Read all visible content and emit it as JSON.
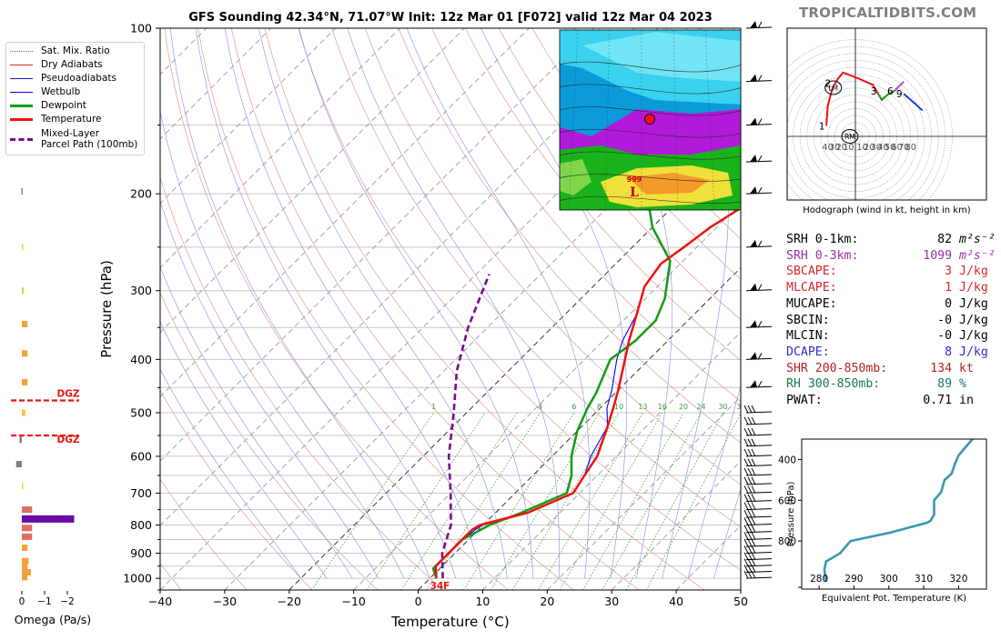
{
  "title": "GFS Sounding 42.34°N, 71.07°W Init: 12z Mar 01 [F072] valid 12z Mar 04 2023",
  "brand": "TROPICALTIDBITS.COM",
  "legend": {
    "items": [
      {
        "label": "Sat. Mix. Ratio",
        "color": "#2ca02c",
        "style": "dotted"
      },
      {
        "label": "Dry Adiabats",
        "color": "#d62728",
        "style": "thin"
      },
      {
        "label": "Pseudoadiabats",
        "color": "#1f1fd6",
        "style": "thin"
      },
      {
        "label": "Wetbulb",
        "color": "#0000ff",
        "style": "solid"
      },
      {
        "label": "Dewpoint",
        "color": "#129c12",
        "style": "thick"
      },
      {
        "label": "Temperature",
        "color": "#ee1111",
        "style": "thick"
      },
      {
        "label": "Mixed-Layer",
        "label2": "Parcel Path (100mb)",
        "color": "#7a0c8c",
        "style": "dashed"
      }
    ]
  },
  "surface_temp_label": "34F",
  "dgz_label": "DGZ",
  "inset_map": {
    "low_label": "L",
    "low_pressure": "999"
  },
  "stats": [
    {
      "label": "SRH 0-1km:",
      "value": "82",
      "unit": "m²s⁻²",
      "color": "#000000"
    },
    {
      "label": "SRH 0-3km:",
      "value": "1099",
      "unit": "m²s⁻²",
      "color": "#9b2fae"
    },
    {
      "label": "SBCAPE:",
      "value": "3",
      "unit": "J/kg",
      "color": "#d62728"
    },
    {
      "label": "MLCAPE:",
      "value": "1",
      "unit": "J/kg",
      "color": "#d62728"
    },
    {
      "label": "MUCAPE:",
      "value": "0",
      "unit": "J/kg",
      "color": "#000000"
    },
    {
      "label": "SBCIN:",
      "value": "-0",
      "unit": "J/kg",
      "color": "#000000"
    },
    {
      "label": "MLCIN:",
      "value": "-0",
      "unit": "J/kg",
      "color": "#000000"
    },
    {
      "label": "DCAPE:",
      "value": "8",
      "unit": "J/kg",
      "color": "#2b2bd6"
    },
    {
      "label": "SHR 200-850mb:",
      "value": "134",
      "unit": "kt",
      "color": "#b22222"
    },
    {
      "label": "RH 300-850mb:",
      "value": "89",
      "unit": "%",
      "color": "#1a7a4a"
    },
    {
      "label": "PWAT:",
      "value": "0.71",
      "unit": "in",
      "color": "#000000"
    }
  ],
  "chart_data": [
    {
      "type": "line",
      "name": "skew-t",
      "xlabel": "Temperature (°C)",
      "ylabel": "Pressure (hPa)",
      "xlim": [
        -40,
        50
      ],
      "ylim": [
        1000,
        100
      ],
      "yscale": "log",
      "x_ticks": [
        -40,
        -30,
        -20,
        -10,
        0,
        10,
        20,
        30,
        40,
        50
      ],
      "y_ticks": [
        100,
        200,
        300,
        400,
        500,
        600,
        700,
        800,
        900,
        1000
      ],
      "mixing_ratio_labels": [
        "1",
        "4",
        "6",
        "8",
        "10",
        "13",
        "16",
        "20",
        "24",
        "30",
        "36"
      ],
      "series": [
        {
          "name": "Temperature",
          "color": "#ee1111",
          "points": [
            [
              1,
              1000
            ],
            [
              -1,
              950
            ],
            [
              -1,
              900
            ],
            [
              -1,
              860
            ],
            [
              -1,
              815
            ],
            [
              -0.5,
              800
            ],
            [
              5,
              760
            ],
            [
              9,
              700
            ],
            [
              8,
              650
            ],
            [
              7,
              600
            ],
            [
              4,
              530
            ],
            [
              2,
              490
            ],
            [
              0,
              455
            ],
            [
              -3,
              410
            ],
            [
              -6,
              370
            ],
            [
              -9,
              330
            ],
            [
              -12,
              295
            ],
            [
              -13,
              268
            ],
            [
              -12,
              250
            ],
            [
              -11,
              230
            ],
            [
              -8,
              200
            ],
            [
              -7,
              175
            ],
            [
              -5,
              150
            ],
            [
              -4,
              130
            ],
            [
              -1,
              110
            ],
            [
              0,
              100
            ]
          ]
        },
        {
          "name": "Dewpoint",
          "color": "#129c12",
          "points": [
            [
              1,
              1000
            ],
            [
              -1,
              960
            ],
            [
              -1,
              900
            ],
            [
              -1,
              850
            ],
            [
              1,
              800
            ],
            [
              4,
              760
            ],
            [
              8,
              700
            ],
            [
              6,
              650
            ],
            [
              3,
              600
            ],
            [
              0,
              540
            ],
            [
              -2,
              490
            ],
            [
              -3,
              460
            ],
            [
              -6,
              400
            ],
            [
              -5,
              370
            ],
            [
              -5,
              340
            ],
            [
              -7,
              310
            ],
            [
              -12,
              265
            ],
            [
              -20,
              230
            ],
            [
              -26,
              200
            ],
            [
              -28,
              180
            ],
            [
              -28,
              160
            ],
            [
              -24,
              130
            ],
            [
              -20,
              100
            ]
          ]
        },
        {
          "name": "Wetbulb",
          "color": "#0000ff",
          "points": [
            [
              1,
              1000
            ],
            [
              -1,
              955
            ],
            [
              -1,
              900
            ],
            [
              -1,
              860
            ],
            [
              -0.5,
              815
            ],
            [
              0,
              800
            ],
            [
              5,
              760
            ],
            [
              9,
              700
            ],
            [
              8,
              650
            ],
            [
              6,
              600
            ],
            [
              4,
              530
            ],
            [
              1,
              490
            ],
            [
              -1,
              455
            ],
            [
              -5,
              400
            ],
            [
              -7,
              370
            ],
            [
              -9,
              330
            ],
            [
              -12,
              295
            ],
            [
              -13,
              268
            ],
            [
              -12,
              250
            ],
            [
              -11,
              230
            ],
            [
              -8,
              200
            ],
            [
              -7,
              175
            ],
            [
              -5,
              150
            ],
            [
              -3,
              130
            ],
            [
              -1,
              110
            ],
            [
              1,
              100
            ]
          ]
        },
        {
          "name": "Mixed-Layer Parcel Path (100mb)",
          "color": "#7a0c8c",
          "points": [
            [
              2,
              1000
            ],
            [
              -2,
              900
            ],
            [
              -5,
              800
            ],
            [
              -10,
              700
            ],
            [
              -16,
              600
            ],
            [
              -22,
              500
            ],
            [
              -28,
              420
            ],
            [
              -33,
              350
            ],
            [
              -38,
              280
            ]
          ]
        }
      ]
    },
    {
      "type": "bar",
      "name": "omega",
      "xlabel": "Omega (Pa/s)",
      "x_ticks": [
        "0",
        "−1",
        "−2"
      ],
      "xlim": [
        0.3,
        -2.8
      ],
      "bars": [
        {
          "p": 995,
          "value": -0.25,
          "color": "#f4a13c"
        },
        {
          "p": 975,
          "value": -0.4,
          "color": "#f4a13c"
        },
        {
          "p": 955,
          "value": -0.25,
          "color": "#f4a13c"
        },
        {
          "p": 930,
          "value": -0.3,
          "color": "#f4a13c"
        },
        {
          "p": 880,
          "value": -0.25,
          "color": "#f4a13c"
        },
        {
          "p": 840,
          "value": -0.45,
          "color": "#e06b5d"
        },
        {
          "p": 810,
          "value": -0.45,
          "color": "#e06b5d"
        },
        {
          "p": 780,
          "value": -2.3,
          "color": "#6a0aa8"
        },
        {
          "p": 750,
          "value": -0.45,
          "color": "#e06b5d"
        },
        {
          "p": 680,
          "value": -0.05,
          "color": "#f2d23c"
        },
        {
          "p": 620,
          "value": 0.25,
          "color": "#808080"
        },
        {
          "p": 560,
          "value": 0.1,
          "color": "#808080"
        },
        {
          "p": 500,
          "value": -0.15,
          "color": "#f4c03c"
        },
        {
          "p": 440,
          "value": -0.25,
          "color": "#f4a13c"
        },
        {
          "p": 390,
          "value": -0.25,
          "color": "#f4a13c"
        },
        {
          "p": 345,
          "value": -0.25,
          "color": "#f4a13c"
        },
        {
          "p": 300,
          "value": -0.08,
          "color": "#f4c03c"
        },
        {
          "p": 250,
          "value": -0.03,
          "color": "#f2d23c"
        },
        {
          "p": 198,
          "value": 0.02,
          "color": "#808080"
        },
        {
          "p": 124,
          "value": 0.05,
          "color": "#808080"
        }
      ],
      "dgz_layers": [
        475,
        550
      ]
    },
    {
      "type": "line",
      "name": "hodograph",
      "xlabel": "Hodograph (wind in kt, height in km)",
      "x_ticks": [
        "40",
        "30",
        "20",
        "10",
        "10",
        "20",
        "30",
        "40",
        "50",
        "60",
        "70",
        "80"
      ],
      "point_labels": [
        "1",
        "2",
        "3",
        "6",
        "9"
      ],
      "storm_motion_labels": [
        "LM",
        "RM"
      ],
      "segments": [
        {
          "range_km": "0-3",
          "color": "#ee1111",
          "points": [
            [
              -42,
              7
            ],
            [
              -40,
              20
            ],
            [
              -33,
              32
            ],
            [
              -25,
              38
            ],
            [
              -18,
              42
            ],
            [
              5,
              38
            ],
            [
              25,
              34
            ],
            [
              33,
              28
            ]
          ]
        },
        {
          "range_km": "3-6",
          "color": "#129c12",
          "points": [
            [
              33,
              28
            ],
            [
              38,
              24
            ],
            [
              48,
              28
            ],
            [
              57,
              30
            ]
          ]
        },
        {
          "range_km": "6-9",
          "color": "#b44ac0",
          "points": [
            [
              57,
              30
            ],
            [
              63,
              33
            ],
            [
              70,
              36
            ]
          ]
        },
        {
          "range_km": "9-12",
          "color": "#1a3cdd",
          "points": [
            [
              70,
              28
            ],
            [
              85,
              22
            ],
            [
              97,
              17
            ]
          ]
        }
      ]
    },
    {
      "type": "line",
      "name": "theta-e",
      "xlabel": "Equivalent Pot. Temperature (K)",
      "ylabel": "Pressure (hPa)",
      "xlim": [
        275,
        328
      ],
      "ylim": [
        1000,
        300
      ],
      "x_ticks": [
        280,
        290,
        300,
        310,
        320
      ],
      "y_ticks": [
        400,
        600,
        800
      ],
      "series": [
        {
          "name": "Theta-E",
          "color": "#3a97b0",
          "points": [
            [
              282,
              1000
            ],
            [
              281.5,
              940
            ],
            [
              282,
              900
            ],
            [
              286,
              860
            ],
            [
              289,
              800
            ],
            [
              300,
              760
            ],
            [
              311,
              710
            ],
            [
              312,
              700
            ],
            [
              313,
              670
            ],
            [
              313,
              600
            ],
            [
              315,
              560
            ],
            [
              316,
              500
            ],
            [
              318,
              470
            ],
            [
              319,
              420
            ],
            [
              320,
              380
            ],
            [
              322,
              340
            ],
            [
              324,
              300
            ]
          ]
        }
      ]
    }
  ]
}
